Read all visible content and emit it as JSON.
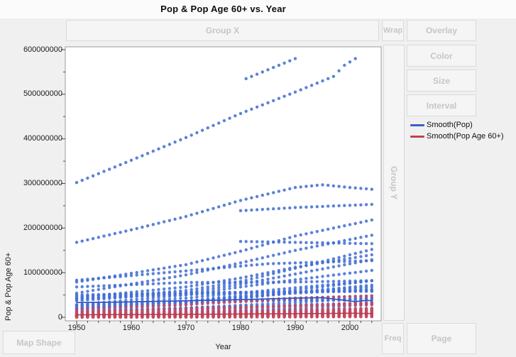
{
  "title": "Pop & Pop Age 60+ vs. Year",
  "drop_zones": {
    "group_x": "Group X",
    "wrap": "Wrap",
    "overlay": "Overlay",
    "color": "Color",
    "size": "Size",
    "interval": "Interval",
    "group_y": "Group Y",
    "map_shape": "Map Shape",
    "freq": "Freq",
    "page": "Page"
  },
  "legend": {
    "items": [
      {
        "label": "Smooth(Pop)",
        "color": "#3a5ec9"
      },
      {
        "label": "Smooth(Pop Age 60+)",
        "color": "#bf4055"
      }
    ]
  },
  "colors": {
    "pop_marker": "#4470d4",
    "pop_age_marker": "#c4485e",
    "pop_smooth_line": "#3354c0",
    "pop_age_smooth_line": "#b23a52",
    "plot_frame": "#9c9c9c",
    "tick": "#4a4a4a",
    "zone_label": "#c6c6c6"
  },
  "chart_data": {
    "type": "scatter",
    "title": "Pop & Pop Age 60+ vs. Year",
    "xlabel": "Year",
    "ylabel": "Pop & Pop Age 60+",
    "xlim": [
      1948,
      2006
    ],
    "ylim": [
      0,
      600000000
    ],
    "x_major_ticks": [
      1950,
      1960,
      1970,
      1980,
      1990,
      2000
    ],
    "x_minor_step_years": 2,
    "y_major_ticks": [
      0,
      100000000,
      200000000,
      300000000,
      400000000,
      500000000,
      600000000
    ],
    "y_minor_step": 50000000,
    "grid": false,
    "legend_position": "right",
    "units_note": "two measures plotted per country per year; series anchor values below are in millions of persons, dots drawn annually 1950-2004 with linear interpolation between anchors",
    "pop_series_anchors_millions": [
      [
        [
          1950,
          302
        ],
        [
          1960,
          352
        ],
        [
          1970,
          403
        ],
        [
          1980,
          457
        ],
        [
          1990,
          505
        ],
        [
          1997,
          540
        ],
        [
          1999,
          565
        ],
        [
          2001,
          580
        ]
      ],
      [
        [
          1981,
          535
        ],
        [
          1990,
          580
        ]
      ],
      [
        [
          1950,
          168
        ],
        [
          1960,
          196
        ],
        [
          1970,
          226
        ],
        [
          1980,
          262
        ],
        [
          1990,
          291
        ],
        [
          1995,
          297
        ],
        [
          2000,
          291
        ],
        [
          2004,
          287
        ]
      ],
      [
        [
          1980,
          239
        ],
        [
          1990,
          246
        ],
        [
          2004,
          253
        ]
      ],
      [
        [
          1980,
          170
        ],
        [
          2004,
          165
        ]
      ],
      [
        [
          1950,
          79
        ],
        [
          1970,
          118
        ],
        [
          1980,
          148
        ],
        [
          1990,
          182
        ],
        [
          2004,
          218
        ]
      ],
      [
        [
          1950,
          54
        ],
        [
          1970,
          95
        ],
        [
          1980,
          122
        ],
        [
          1990,
          150
        ],
        [
          2004,
          184
        ]
      ],
      [
        [
          1950,
          83
        ],
        [
          1970,
          104
        ],
        [
          1985,
          120
        ],
        [
          2004,
          127
        ]
      ],
      [
        [
          1950,
          40
        ],
        [
          1970,
          60
        ],
        [
          1980,
          80
        ],
        [
          1990,
          110
        ],
        [
          2004,
          152
        ]
      ],
      [
        [
          1950,
          44
        ],
        [
          1970,
          68
        ],
        [
          1980,
          88
        ],
        [
          1990,
          112
        ],
        [
          2004,
          140
        ]
      ],
      [
        [
          1950,
          37
        ],
        [
          1970,
          55
        ],
        [
          1980,
          74
        ],
        [
          1990,
          97
        ],
        [
          2004,
          129
        ]
      ],
      [
        [
          1950,
          28
        ],
        [
          1970,
          50
        ],
        [
          1980,
          68
        ],
        [
          1990,
          84
        ],
        [
          2004,
          105
        ]
      ],
      [
        [
          1950,
          68
        ],
        [
          1970,
          78
        ],
        [
          1990,
          79
        ],
        [
          2004,
          82
        ]
      ],
      [
        [
          1950,
          50
        ],
        [
          1970,
          55
        ],
        [
          1990,
          57
        ],
        [
          2004,
          60
        ]
      ],
      [
        [
          1950,
          42
        ],
        [
          1970,
          51
        ],
        [
          1990,
          57
        ],
        [
          2004,
          60
        ]
      ],
      [
        [
          1950,
          47
        ],
        [
          1970,
          54
        ],
        [
          1990,
          57
        ],
        [
          2004,
          58
        ]
      ],
      [
        [
          1950,
          20
        ],
        [
          1970,
          36
        ],
        [
          1990,
          61
        ],
        [
          2004,
          82
        ]
      ],
      [
        [
          1950,
          25
        ],
        [
          1970,
          43
        ],
        [
          1990,
          66
        ],
        [
          2004,
          82
        ]
      ],
      [
        [
          1950,
          21
        ],
        [
          1970,
          35
        ],
        [
          1990,
          56
        ],
        [
          2004,
          72
        ]
      ],
      [
        [
          1950,
          17
        ],
        [
          1970,
          28
        ],
        [
          1990,
          56
        ],
        [
          2004,
          68
        ]
      ],
      [
        [
          1950,
          20
        ],
        [
          1970,
          36
        ],
        [
          1990,
          54
        ],
        [
          2004,
          63
        ]
      ],
      [
        [
          1950,
          28
        ],
        [
          1970,
          34
        ],
        [
          1990,
          39
        ],
        [
          2004,
          42
        ]
      ],
      [
        [
          1950,
          25
        ],
        [
          1970,
          33
        ],
        [
          1990,
          38
        ],
        [
          2004,
          38
        ]
      ],
      [
        [
          1950,
          19
        ],
        [
          1970,
          32
        ],
        [
          1990,
          43
        ],
        [
          2004,
          48
        ]
      ],
      [
        [
          1950,
          13
        ],
        [
          1970,
          21
        ],
        [
          1990,
          33
        ],
        [
          2004,
          44
        ]
      ],
      [
        [
          1950,
          14
        ],
        [
          1970,
          21
        ],
        [
          1990,
          28
        ],
        [
          2004,
          32
        ]
      ],
      [
        [
          1950,
          12
        ],
        [
          1970,
          18
        ],
        [
          1990,
          25
        ],
        [
          2004,
          30
        ]
      ],
      [
        [
          1950,
          9
        ],
        [
          1970,
          13
        ],
        [
          1990,
          17
        ],
        [
          2004,
          20
        ]
      ],
      [
        [
          1950,
          8
        ],
        [
          1970,
          12
        ],
        [
          1990,
          20
        ],
        [
          2004,
          28
        ]
      ],
      [
        [
          1950,
          7
        ],
        [
          1970,
          10
        ],
        [
          1990,
          14
        ],
        [
          2004,
          16
        ]
      ],
      [
        [
          1950,
          5
        ],
        [
          1970,
          8
        ],
        [
          1990,
          11
        ],
        [
          2004,
          13
        ]
      ],
      [
        [
          1950,
          4
        ],
        [
          1970,
          6
        ],
        [
          1990,
          8
        ],
        [
          2004,
          9
        ]
      ],
      [
        [
          1950,
          3
        ],
        [
          1970,
          4.5
        ],
        [
          1990,
          6
        ],
        [
          2004,
          7
        ]
      ],
      [
        [
          1950,
          2
        ],
        [
          1970,
          3
        ],
        [
          1990,
          4
        ],
        [
          2004,
          5
        ]
      ]
    ],
    "pop_age60_series_anchors_millions": [
      [
        [
          1950,
          18
        ],
        [
          1970,
          28
        ],
        [
          1990,
          42
        ],
        [
          2004,
          48
        ]
      ],
      [
        [
          1950,
          8
        ],
        [
          1970,
          15
        ],
        [
          1990,
          26
        ],
        [
          2004,
          33
        ]
      ],
      [
        [
          1950,
          11
        ],
        [
          1970,
          19
        ],
        [
          1990,
          25
        ],
        [
          2004,
          28
        ]
      ],
      [
        [
          1950,
          7
        ],
        [
          1970,
          11
        ],
        [
          1990,
          16
        ],
        [
          2004,
          20
        ]
      ],
      [
        [
          1950,
          6
        ],
        [
          1970,
          9
        ],
        [
          1990,
          13
        ],
        [
          2004,
          17
        ]
      ],
      [
        [
          1950,
          5
        ],
        [
          1970,
          8
        ],
        [
          1990,
          12
        ],
        [
          2004,
          16
        ]
      ],
      [
        [
          1950,
          5
        ],
        [
          1970,
          7
        ],
        [
          1990,
          10
        ],
        [
          2004,
          14
        ]
      ],
      [
        [
          1950,
          4
        ],
        [
          1970,
          6
        ],
        [
          1990,
          9
        ],
        [
          2004,
          12
        ]
      ],
      [
        [
          1950,
          3.5
        ],
        [
          1970,
          5.5
        ],
        [
          1990,
          8
        ],
        [
          2004,
          11
        ]
      ],
      [
        [
          1950,
          3
        ],
        [
          1970,
          5
        ],
        [
          1990,
          7
        ],
        [
          2004,
          10
        ]
      ],
      [
        [
          1950,
          2.5
        ],
        [
          1970,
          4
        ],
        [
          1990,
          6.5
        ],
        [
          2004,
          9
        ]
      ],
      [
        [
          1950,
          2
        ],
        [
          1970,
          3.5
        ],
        [
          1990,
          6
        ],
        [
          2004,
          8
        ]
      ],
      [
        [
          1950,
          1.8
        ],
        [
          1970,
          3
        ],
        [
          1990,
          5
        ],
        [
          2004,
          7
        ]
      ],
      [
        [
          1950,
          1.5
        ],
        [
          1970,
          2.5
        ],
        [
          1990,
          4.5
        ],
        [
          2004,
          6.5
        ]
      ],
      [
        [
          1950,
          1.2
        ],
        [
          1970,
          2.2
        ],
        [
          1990,
          4
        ],
        [
          2004,
          6
        ]
      ],
      [
        [
          1950,
          1
        ],
        [
          1970,
          2
        ],
        [
          1990,
          3.5
        ],
        [
          2004,
          5
        ]
      ],
      [
        [
          1950,
          0.8
        ],
        [
          1970,
          1.6
        ],
        [
          1990,
          3
        ],
        [
          2004,
          4.5
        ]
      ],
      [
        [
          1950,
          0.6
        ],
        [
          1970,
          1.3
        ],
        [
          1990,
          2.5
        ],
        [
          2004,
          4
        ]
      ],
      [
        [
          1950,
          0.5
        ],
        [
          1970,
          1
        ],
        [
          1990,
          2
        ],
        [
          2004,
          3
        ]
      ],
      [
        [
          1950,
          0.3
        ],
        [
          1970,
          0.8
        ],
        [
          1990,
          1.5
        ],
        [
          2004,
          2.5
        ]
      ],
      [
        [
          1950,
          0.2
        ],
        [
          1970,
          0.5
        ],
        [
          1990,
          1
        ],
        [
          2004,
          1.8
        ]
      ],
      [
        [
          1950,
          0.1
        ],
        [
          1970,
          0.3
        ],
        [
          1990,
          0.7
        ],
        [
          2004,
          1.2
        ]
      ]
    ],
    "smoothers_anchors_millions": {
      "pop": [
        [
          1950,
          33
        ],
        [
          1958,
          34
        ],
        [
          1966,
          36
        ],
        [
          1974,
          38
        ],
        [
          1982,
          40
        ],
        [
          1990,
          43
        ],
        [
          1995,
          44
        ],
        [
          1999,
          38
        ],
        [
          2001,
          35
        ],
        [
          2003,
          38
        ],
        [
          2004,
          37
        ]
      ],
      "pop_age60": [
        [
          1950,
          5.5
        ],
        [
          1970,
          6.5
        ],
        [
          1990,
          8
        ],
        [
          2000,
          9
        ],
        [
          2004,
          8.5
        ]
      ]
    },
    "year_range_of_points": [
      1950,
      2004
    ],
    "points_per_year": "one dot per country per measure, annually"
  }
}
